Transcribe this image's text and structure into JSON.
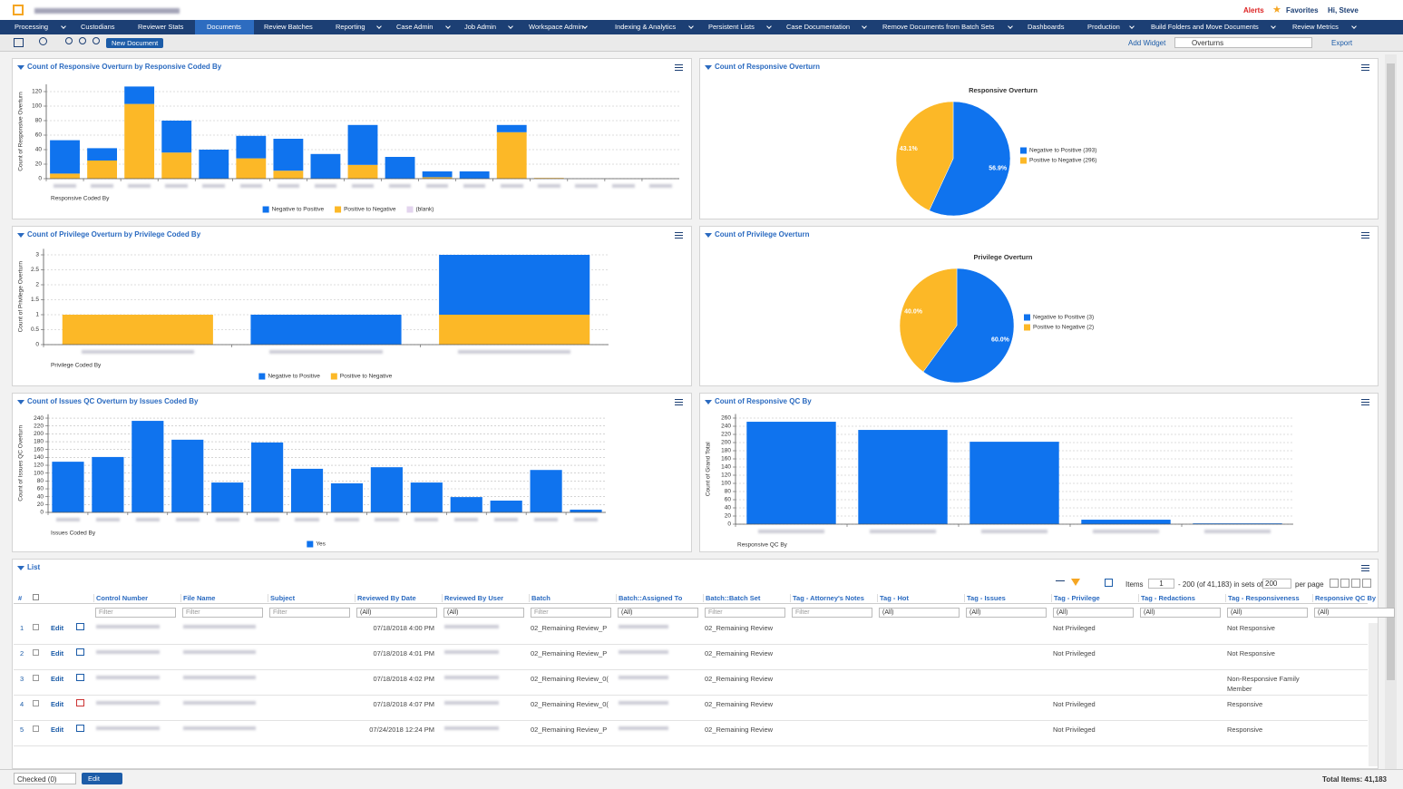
{
  "header": {
    "alerts": "Alerts",
    "favorites": "Favorites",
    "user": "Hi, Steve"
  },
  "nav": [
    "Processing",
    "Custodians",
    "Reviewer Stats",
    "Documents",
    "Review Batches",
    "Reporting",
    "Case Admin",
    "Job Admin",
    "Workspace Admin",
    "Indexing & Analytics",
    "Persistent Lists",
    "Case Documentation",
    "Remove Documents from Batch Sets",
    "Dashboards",
    "Production",
    "Build Folders and Move Documents",
    "Review Metrics"
  ],
  "toolbar": {
    "new_document": "New Document",
    "add_widget": "Add Widget",
    "dashboard": "Overturns",
    "export": "Export"
  },
  "chart_data": [
    {
      "type": "bar",
      "stacked": true,
      "title": "Count of Responsive Overturn by Responsive Coded By",
      "y_label": "Count of Responsive Overturn",
      "x_label": "Responsive Coded By",
      "categories": [
        null,
        null,
        null,
        null,
        null,
        null,
        null,
        null,
        null,
        null,
        null,
        null,
        null,
        null,
        null,
        null,
        null
      ],
      "series": [
        {
          "name": "Negative to Positive",
          "color": "#0f73ee",
          "values": [
            46,
            17,
            24,
            44,
            40,
            31,
            44,
            34,
            55,
            30,
            8,
            10,
            10,
            0,
            0,
            0,
            0
          ]
        },
        {
          "name": "Positive to Negative",
          "color": "#fcb827",
          "values": [
            7,
            25,
            103,
            36,
            0,
            28,
            11,
            0,
            19,
            0,
            2,
            0,
            64,
            1,
            0,
            0,
            0
          ]
        },
        {
          "name": "(blank)",
          "color": "#e3d4ee",
          "values": [
            0,
            0,
            0,
            0,
            0,
            0,
            0,
            0,
            0,
            0,
            0,
            0,
            0,
            0,
            0,
            0,
            0
          ]
        }
      ],
      "ylim": [
        0,
        130
      ],
      "yticks": [
        0,
        20,
        40,
        60,
        80,
        100,
        120
      ],
      "grid": true,
      "legend": "bottom"
    },
    {
      "type": "pie",
      "title": "Count of Responsive Overturn",
      "subtitle": "Responsive Overturn",
      "categories": [
        "Negative to Positive (393)",
        "Positive to Negative (296)"
      ],
      "values": [
        56.9,
        43.1
      ],
      "value_labels": [
        "56.9%",
        "43.1%"
      ],
      "colors": [
        "#0f73ee",
        "#fcb827"
      ],
      "legend": "right"
    },
    {
      "type": "bar",
      "stacked": true,
      "title": "Count of Privilege Overturn by Privilege Coded By",
      "y_label": "Count of Privilege Overturn",
      "x_label": "Privilege Coded By",
      "categories": [
        null,
        null,
        null
      ],
      "series": [
        {
          "name": "Negative to Positive",
          "color": "#0f73ee",
          "values": [
            0,
            1,
            2
          ]
        },
        {
          "name": "Positive to Negative",
          "color": "#fcb827",
          "values": [
            1,
            0,
            1
          ]
        }
      ],
      "ylim": [
        0,
        3.2
      ],
      "yticks": [
        0,
        0.5,
        1,
        1.5,
        2,
        2.5,
        3
      ],
      "grid": true,
      "legend": "bottom"
    },
    {
      "type": "pie",
      "title": "Count of Privilege Overturn",
      "subtitle": "Privilege Overturn",
      "categories": [
        "Negative to Positive (3)",
        "Positive to Negative (2)"
      ],
      "values": [
        60,
        40
      ],
      "value_labels": [
        "60.0%",
        "40.0%"
      ],
      "colors": [
        "#0f73ee",
        "#fcb827"
      ],
      "legend": "right"
    },
    {
      "type": "bar",
      "stacked": false,
      "title": "Count of Issues QC Overturn by Issues Coded By",
      "y_label": "Count of Issues QC Overturn",
      "x_label": "Issues Coded By",
      "categories": [
        null,
        null,
        null,
        null,
        null,
        null,
        null,
        null,
        null,
        null,
        null,
        null,
        null,
        null
      ],
      "series": [
        {
          "name": "Yes",
          "color": "#0f73ee",
          "values": [
            129,
            141,
            233,
            185,
            76,
            178,
            111,
            74,
            115,
            76,
            39,
            30,
            108,
            7
          ]
        }
      ],
      "ylim": [
        0,
        250
      ],
      "yticks": [
        0,
        20,
        40,
        60,
        80,
        100,
        120,
        140,
        160,
        180,
        200,
        220,
        240
      ],
      "grid": true,
      "legend": "bottom"
    },
    {
      "type": "bar",
      "stacked": false,
      "title": "Count of Responsive QC By",
      "y_label": "Count of Grand Total",
      "x_label": "Responsive QC By",
      "categories": [
        null,
        null,
        null,
        null,
        null
      ],
      "values": [
        251,
        231,
        202,
        11,
        2
      ],
      "color": "#0f73ee",
      "ylim": [
        0,
        270
      ],
      "yticks": [
        0,
        20,
        40,
        60,
        80,
        100,
        120,
        140,
        160,
        180,
        200,
        220,
        240,
        260
      ],
      "grid": true
    }
  ],
  "list": {
    "title": "List",
    "pager": {
      "items_label": "Items",
      "start": "1",
      "range_text": "- 200 (of 41,183) in sets of",
      "page_size": "200",
      "per_page": "per page"
    },
    "columns": [
      "#",
      "Control Number",
      "File Name",
      "Subject",
      "Reviewed By Date",
      "Reviewed By User",
      "Batch",
      "Batch::Assigned To",
      "Batch::Batch Set",
      "Tag - Attorney's Notes",
      "Tag - Hot",
      "Tag - Issues",
      "Tag - Privilege",
      "Tag - Redactions",
      "Tag - Responsiveness",
      "Responsive QC By"
    ],
    "filters": [
      "Filter",
      "Filter",
      "Filter",
      "(All)",
      "(All)",
      "Filter",
      "(All)",
      "Filter",
      "Filter",
      "(All)",
      "(All)",
      "(All)",
      "(All)",
      "(All)",
      "(All)"
    ],
    "rows": [
      {
        "number": "1",
        "edit": "Edit",
        "reviewed_by_date": "07/18/2018 4:00 PM",
        "batch": "02_Remaining Review_P",
        "batch_set": "02_Remaining Review",
        "tag_privilege": "Not Privileged",
        "tag_responsiveness": "Not Responsive"
      },
      {
        "number": "2",
        "edit": "Edit",
        "reviewed_by_date": "07/18/2018 4:01 PM",
        "batch": "02_Remaining Review_P",
        "batch_set": "02_Remaining Review",
        "tag_privilege": "Not Privileged",
        "tag_responsiveness": "Not Responsive"
      },
      {
        "number": "3",
        "edit": "Edit",
        "reviewed_by_date": "07/18/2018 4:02 PM",
        "batch": "02_Remaining Review_0(",
        "batch_set": "02_Remaining Review",
        "tag_responsiveness": "Non-Responsive Family Member"
      },
      {
        "number": "4",
        "edit": "Edit",
        "reviewed_by_date": "07/18/2018 4:07 PM",
        "batch": "02_Remaining Review_0(",
        "batch_set": "02_Remaining Review",
        "tag_privilege": "Not Privileged",
        "tag_responsiveness": "Responsive"
      },
      {
        "number": "5",
        "edit": "Edit",
        "reviewed_by_date": "07/24/2018 12:24 PM",
        "batch": "02_Remaining Review_P",
        "batch_set": "02_Remaining Review",
        "tag_privilege": "Not Privileged",
        "tag_responsiveness": "Responsive"
      }
    ],
    "footer": {
      "checked": "Checked (0)",
      "edit": "Edit",
      "total": "Total Items: 41,183"
    }
  }
}
